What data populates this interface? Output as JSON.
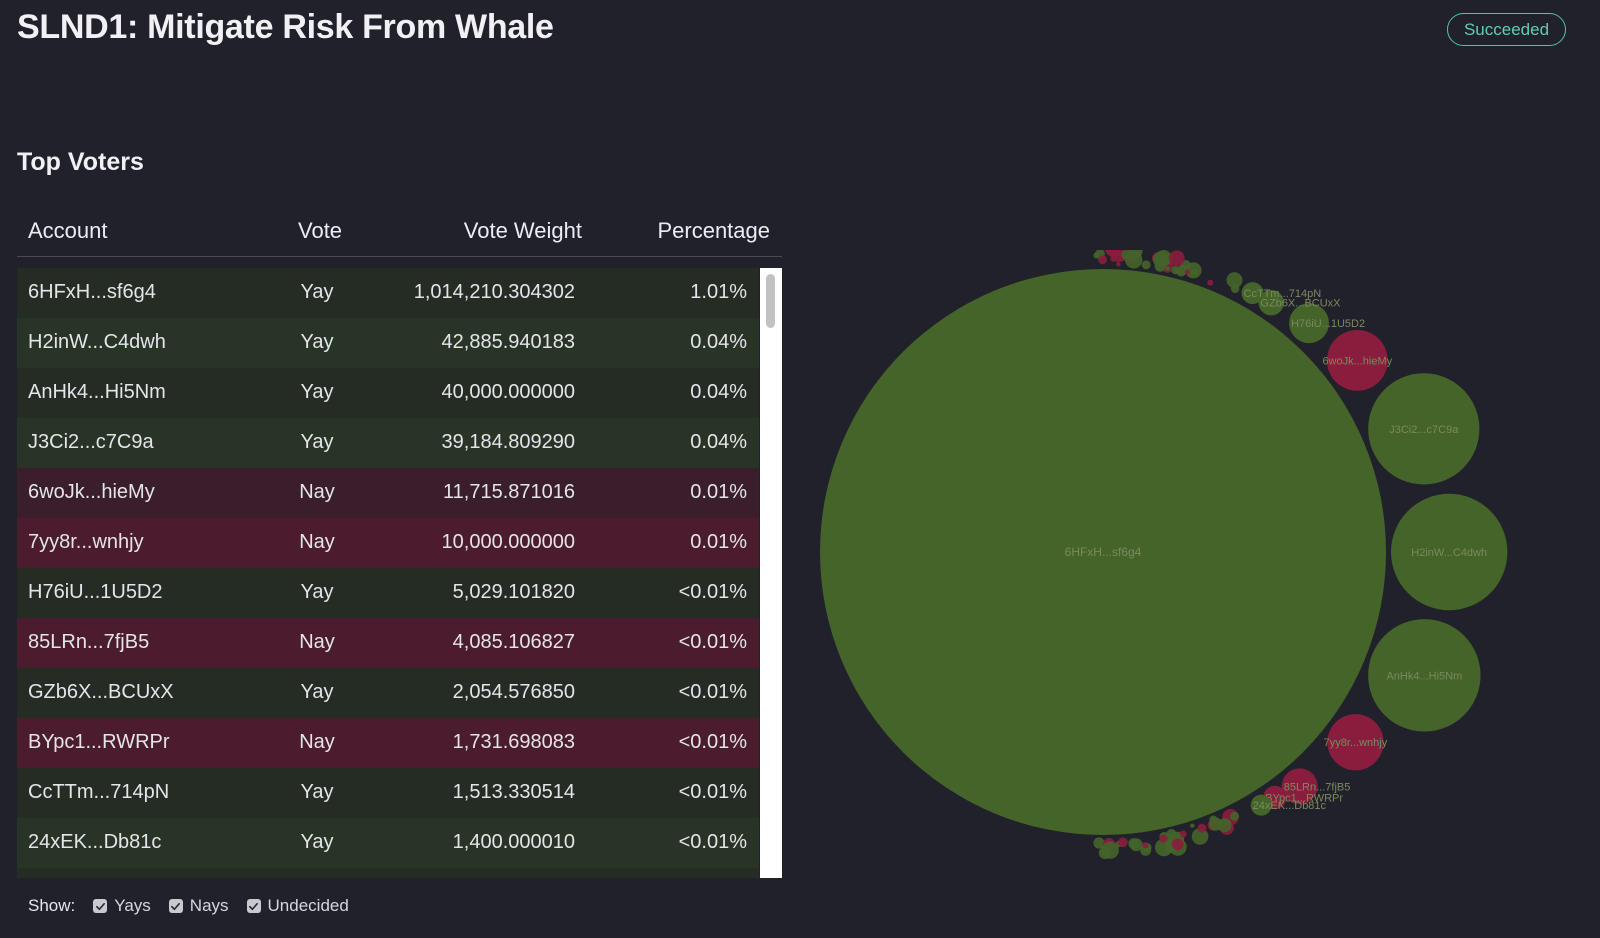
{
  "header": {
    "title": "SLND1: Mitigate Risk From Whale",
    "status": "Succeeded"
  },
  "section": {
    "title": "Top Voters"
  },
  "table": {
    "columns": {
      "account": "Account",
      "vote": "Vote",
      "weight": "Vote Weight",
      "percentage": "Percentage"
    },
    "rows": [
      {
        "account": "6HFxH...sf6g4",
        "vote": "Yay",
        "weight": "1,014,210.304302",
        "percentage": "1.01%"
      },
      {
        "account": "H2inW...C4dwh",
        "vote": "Yay",
        "weight": "42,885.940183",
        "percentage": "0.04%"
      },
      {
        "account": "AnHk4...Hi5Nm",
        "vote": "Yay",
        "weight": "40,000.000000",
        "percentage": "0.04%"
      },
      {
        "account": "J3Ci2...c7C9a",
        "vote": "Yay",
        "weight": "39,184.809290",
        "percentage": "0.04%"
      },
      {
        "account": "6woJk...hieMy",
        "vote": "Nay",
        "weight": "11,715.871016",
        "percentage": "0.01%"
      },
      {
        "account": "7yy8r...wnhjy",
        "vote": "Nay",
        "weight": "10,000.000000",
        "percentage": "0.01%"
      },
      {
        "account": "H76iU...1U5D2",
        "vote": "Yay",
        "weight": "5,029.101820",
        "percentage": "<0.01%"
      },
      {
        "account": "85LRn...7fjB5",
        "vote": "Nay",
        "weight": "4,085.106827",
        "percentage": "<0.01%"
      },
      {
        "account": "GZb6X...BCUxX",
        "vote": "Yay",
        "weight": "2,054.576850",
        "percentage": "<0.01%"
      },
      {
        "account": "BYpc1...RWRPr",
        "vote": "Nay",
        "weight": "1,731.698083",
        "percentage": "<0.01%"
      },
      {
        "account": "CcTTm...714pN",
        "vote": "Yay",
        "weight": "1,513.330514",
        "percentage": "<0.01%"
      },
      {
        "account": "24xEK...Db81c",
        "vote": "Yay",
        "weight": "1,400.000010",
        "percentage": "<0.01%"
      }
    ]
  },
  "filters": {
    "show_label": "Show:",
    "yays": "Yays",
    "nays": "Nays",
    "undecided": "Undecided"
  },
  "chart_data": {
    "type": "bubble",
    "colors": {
      "yay": "#44642a",
      "nay": "#8a1d3d"
    },
    "bubbles": [
      {
        "label": "6HFxH...sf6g4",
        "vote": "Yay",
        "value": 1014210.304302
      },
      {
        "label": "H2inW...C4dwh",
        "vote": "Yay",
        "value": 42885.940183
      },
      {
        "label": "AnHk4...Hi5Nm",
        "vote": "Yay",
        "value": 40000.0
      },
      {
        "label": "J3Ci2...c7C9a",
        "vote": "Yay",
        "value": 39184.80929
      },
      {
        "label": "6woJk...hieMy",
        "vote": "Nay",
        "value": 11715.871016
      },
      {
        "label": "7yy8r...wnhjy",
        "vote": "Nay",
        "value": 10000.0
      },
      {
        "label": "H76iU...1U5D2",
        "vote": "Yay",
        "value": 5029.10182
      },
      {
        "label": "85LRn...7fjB5",
        "vote": "Nay",
        "value": 4085.106827
      },
      {
        "label": "GZb6X...BCUxX",
        "vote": "Yay",
        "value": 2054.57685
      },
      {
        "label": "BYpc1...RWRPr",
        "vote": "Nay",
        "value": 1731.698083
      },
      {
        "label": "CcTTm...714pN",
        "vote": "Yay",
        "value": 1513.330514
      },
      {
        "label": "24xEK...Db81c",
        "vote": "Yay",
        "value": 1400.00001
      }
    ]
  }
}
